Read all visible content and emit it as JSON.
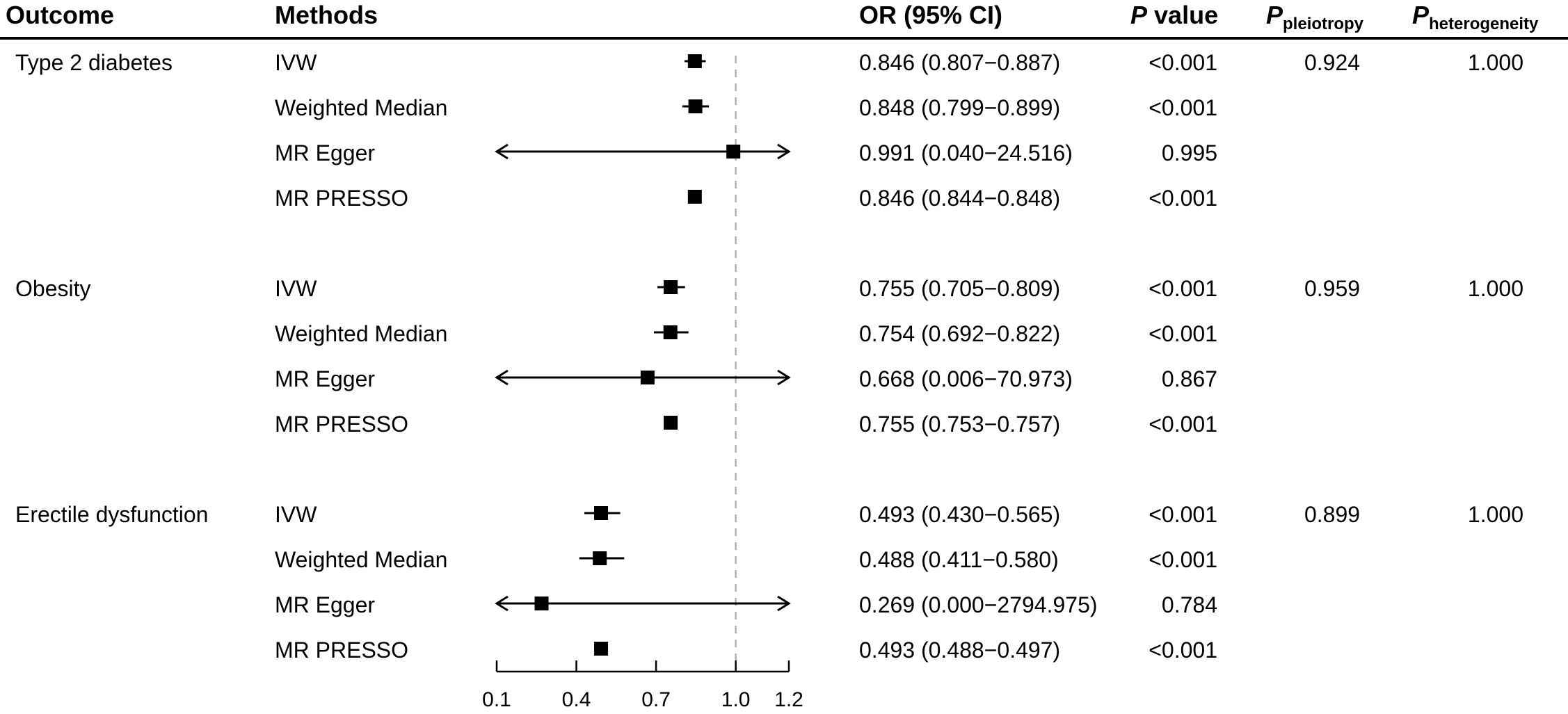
{
  "headers": {
    "outcome": "Outcome",
    "methods": "Methods",
    "or_ci": "OR (95% CI)",
    "p_letter": "P",
    "p_value_word": "value",
    "p_pleio_sub": "pleiotropy",
    "p_hetero_sub": "heterogeneity"
  },
  "groups": [
    {
      "outcome": "Type 2 diabetes",
      "p_pleiotropy": "0.924",
      "p_heterogeneity": "1.000",
      "rows": [
        {
          "method": "IVW",
          "or_text": "0.846 (0.807−0.887)",
          "p": "<0.001"
        },
        {
          "method": "Weighted Median",
          "or_text": "0.848 (0.799−0.899)",
          "p": "<0.001"
        },
        {
          "method": "MR Egger",
          "or_text": "0.991 (0.040−24.516)",
          "p": "0.995"
        },
        {
          "method": "MR PRESSO",
          "or_text": "0.846 (0.844−0.848)",
          "p": "<0.001"
        }
      ]
    },
    {
      "outcome": "Obesity",
      "p_pleiotropy": "0.959",
      "p_heterogeneity": "1.000",
      "rows": [
        {
          "method": "IVW",
          "or_text": "0.755 (0.705−0.809)",
          "p": "<0.001"
        },
        {
          "method": "Weighted Median",
          "or_text": "0.754 (0.692−0.822)",
          "p": "<0.001"
        },
        {
          "method": "MR Egger",
          "or_text": "0.668 (0.006−70.973)",
          "p": "0.867"
        },
        {
          "method": "MR PRESSO",
          "or_text": "0.755 (0.753−0.757)",
          "p": "<0.001"
        }
      ]
    },
    {
      "outcome": "Erectile dysfunction",
      "p_pleiotropy": "0.899",
      "p_heterogeneity": "1.000",
      "rows": [
        {
          "method": "IVW",
          "or_text": "0.493 (0.430−0.565)",
          "p": "<0.001"
        },
        {
          "method": "Weighted Median",
          "or_text": "0.488 (0.411−0.580)",
          "p": "<0.001"
        },
        {
          "method": "MR Egger",
          "or_text": "0.269 (0.000−2794.975)",
          "p": "0.784"
        },
        {
          "method": "MR PRESSO",
          "or_text": "0.493 (0.488−0.497)",
          "p": "<0.001"
        }
      ]
    }
  ],
  "chart_data": {
    "type": "forest",
    "xlim": [
      0.1,
      1.2
    ],
    "ticks": [
      0.1,
      0.4,
      0.7,
      1.0,
      1.2
    ],
    "tick_labels": [
      "0.1",
      "0.4",
      "0.7",
      "1.0",
      "1.2"
    ],
    "reference_line": 1.0,
    "series": [
      {
        "group": "Type 2 diabetes",
        "method": "IVW",
        "or": 0.846,
        "lo": 0.807,
        "hi": 0.887
      },
      {
        "group": "Type 2 diabetes",
        "method": "Weighted Median",
        "or": 0.848,
        "lo": 0.799,
        "hi": 0.899
      },
      {
        "group": "Type 2 diabetes",
        "method": "MR Egger",
        "or": 0.991,
        "lo": 0.04,
        "hi": 24.516
      },
      {
        "group": "Type 2 diabetes",
        "method": "MR PRESSO",
        "or": 0.846,
        "lo": 0.844,
        "hi": 0.848
      },
      {
        "group": "Obesity",
        "method": "IVW",
        "or": 0.755,
        "lo": 0.705,
        "hi": 0.809
      },
      {
        "group": "Obesity",
        "method": "Weighted Median",
        "or": 0.754,
        "lo": 0.692,
        "hi": 0.822
      },
      {
        "group": "Obesity",
        "method": "MR Egger",
        "or": 0.668,
        "lo": 0.006,
        "hi": 70.973
      },
      {
        "group": "Obesity",
        "method": "MR PRESSO",
        "or": 0.755,
        "lo": 0.753,
        "hi": 0.757
      },
      {
        "group": "Erectile dysfunction",
        "method": "IVW",
        "or": 0.493,
        "lo": 0.43,
        "hi": 0.565
      },
      {
        "group": "Erectile dysfunction",
        "method": "Weighted Median",
        "or": 0.488,
        "lo": 0.411,
        "hi": 0.58
      },
      {
        "group": "Erectile dysfunction",
        "method": "MR Egger",
        "or": 0.269,
        "lo": 0.0,
        "hi": 2794.975
      },
      {
        "group": "Erectile dysfunction",
        "method": "MR PRESSO",
        "or": 0.493,
        "lo": 0.488,
        "hi": 0.497
      }
    ]
  }
}
